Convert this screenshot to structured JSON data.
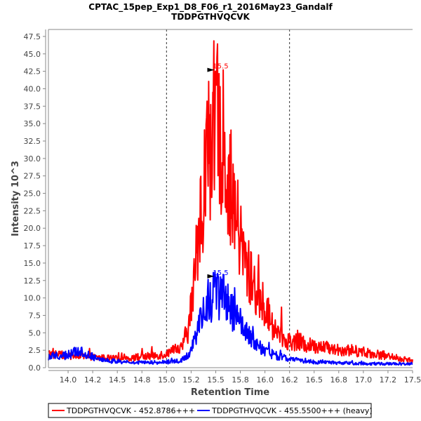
{
  "chart_data": {
    "type": "line",
    "title": "CPTAC_15pep_Exp1_D8_F06_r1_2016May23_Gandalf",
    "subtitle": "TDDPGTHVQCVK",
    "xlabel": "Retention Time",
    "ylabel": "Intensity 10^3",
    "xlim": [
      13.8,
      17.5
    ],
    "ylim": [
      0,
      48.5
    ],
    "x_ticks": [
      14.0,
      14.25,
      14.5,
      14.75,
      15.0,
      15.25,
      15.5,
      15.75,
      16.0,
      16.25,
      16.5,
      16.75,
      17.0,
      17.25,
      17.5
    ],
    "x_tick_labels": [
      "14.0",
      "14.2",
      "14.5",
      "14.8",
      "15.0",
      "15.2",
      "15.5",
      "15.8",
      "16.0",
      "16.2",
      "16.5",
      "16.8",
      "17.0",
      "17.2",
      "17.5"
    ],
    "y_ticks": [
      0,
      2.5,
      5,
      7.5,
      10,
      12.5,
      15,
      17.5,
      20,
      22.5,
      25,
      27.5,
      30,
      32.5,
      35,
      37.5,
      40,
      42.5,
      45,
      47.5
    ],
    "y_tick_labels": [
      "0.0",
      "2.5",
      "5.0",
      "7.5",
      "10.0",
      "12.5",
      "15.0",
      "17.5",
      "20.0",
      "22.5",
      "25.0",
      "27.5",
      "30.0",
      "32.5",
      "35.0",
      "37.5",
      "40.0",
      "42.5",
      "45.0",
      "47.5"
    ],
    "grid": false,
    "boundary_lines": [
      15.0,
      16.25
    ],
    "legend_position": "bottom",
    "series": [
      {
        "name": "TDDPGTHVQCVK - 452.8786+++",
        "color": "#ff0000",
        "peak": {
          "x": 15.5,
          "y": 42.5,
          "label": "15.5"
        },
        "noise": 0.35,
        "envelope": [
          [
            13.8,
            2.0
          ],
          [
            14.0,
            1.7
          ],
          [
            14.2,
            1.5
          ],
          [
            14.5,
            1.3
          ],
          [
            14.8,
            1.6
          ],
          [
            15.0,
            2.0
          ],
          [
            15.15,
            2.8
          ],
          [
            15.22,
            5.5
          ],
          [
            15.28,
            12.0
          ],
          [
            15.33,
            20.0
          ],
          [
            15.38,
            26.0
          ],
          [
            15.43,
            32.0
          ],
          [
            15.5,
            35.0
          ],
          [
            15.56,
            33.0
          ],
          [
            15.62,
            28.0
          ],
          [
            15.7,
            22.0
          ],
          [
            15.78,
            16.0
          ],
          [
            15.88,
            12.0
          ],
          [
            16.0,
            8.5
          ],
          [
            16.1,
            5.5
          ],
          [
            16.2,
            4.0
          ],
          [
            16.4,
            3.3
          ],
          [
            16.7,
            2.7
          ],
          [
            17.0,
            2.3
          ],
          [
            17.25,
            1.6
          ],
          [
            17.5,
            1.0
          ]
        ]
      },
      {
        "name": "TDDPGTHVQCVK - 455.5500+++ (heavy)",
        "color": "#0000ff",
        "peak": {
          "x": 15.5,
          "y": 12.9,
          "label": "15.5"
        },
        "noise": 0.35,
        "envelope": [
          [
            13.8,
            1.6
          ],
          [
            14.0,
            1.8
          ],
          [
            14.1,
            2.4
          ],
          [
            14.2,
            1.8
          ],
          [
            14.4,
            1.0
          ],
          [
            14.7,
            0.7
          ],
          [
            15.0,
            0.8
          ],
          [
            15.15,
            1.0
          ],
          [
            15.22,
            1.8
          ],
          [
            15.3,
            4.5
          ],
          [
            15.37,
            7.5
          ],
          [
            15.45,
            10.0
          ],
          [
            15.55,
            10.5
          ],
          [
            15.65,
            8.5
          ],
          [
            15.75,
            6.0
          ],
          [
            15.85,
            4.2
          ],
          [
            15.95,
            2.8
          ],
          [
            16.05,
            2.0
          ],
          [
            16.2,
            1.4
          ],
          [
            16.4,
            0.9
          ],
          [
            16.7,
            0.7
          ],
          [
            17.0,
            0.6
          ],
          [
            17.5,
            0.5
          ]
        ]
      }
    ]
  }
}
